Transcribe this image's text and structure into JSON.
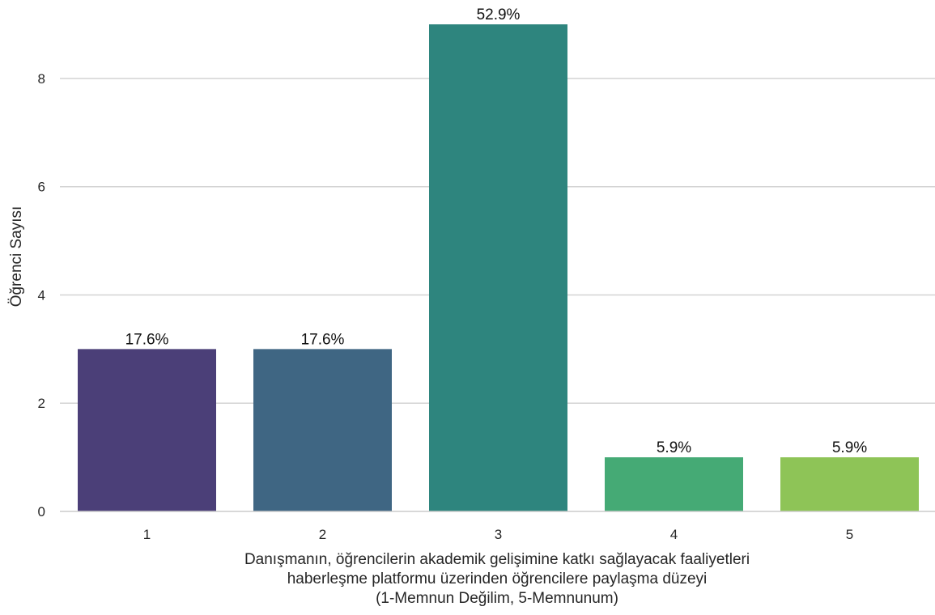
{
  "chart_data": {
    "type": "bar",
    "categories": [
      "1",
      "2",
      "3",
      "4",
      "5"
    ],
    "values": [
      3,
      3,
      9,
      1,
      1
    ],
    "data_labels": [
      "17.6%",
      "17.6%",
      "52.9%",
      "5.9%",
      "5.9%"
    ],
    "colors": [
      "#4b3f78",
      "#3f6683",
      "#2e857e",
      "#45aa75",
      "#8ec457"
    ],
    "xlabel_lines": [
      "Danışmanın, öğrencilerin akademik gelişimine katkı sağlayacak faaliyetleri",
      "haberleşme platformu üzerinden öğrencilere paylaşma düzeyi",
      "(1-Memnun Değilim, 5-Memnunum)"
    ],
    "ylabel": "Öğrenci Sayısı",
    "yticks": [
      0,
      2,
      4,
      6,
      8
    ],
    "ylim": [
      0,
      9.45
    ],
    "grid": "horizontal",
    "grid_color": "#d3d3d3",
    "axis_color": "#cccccc"
  }
}
